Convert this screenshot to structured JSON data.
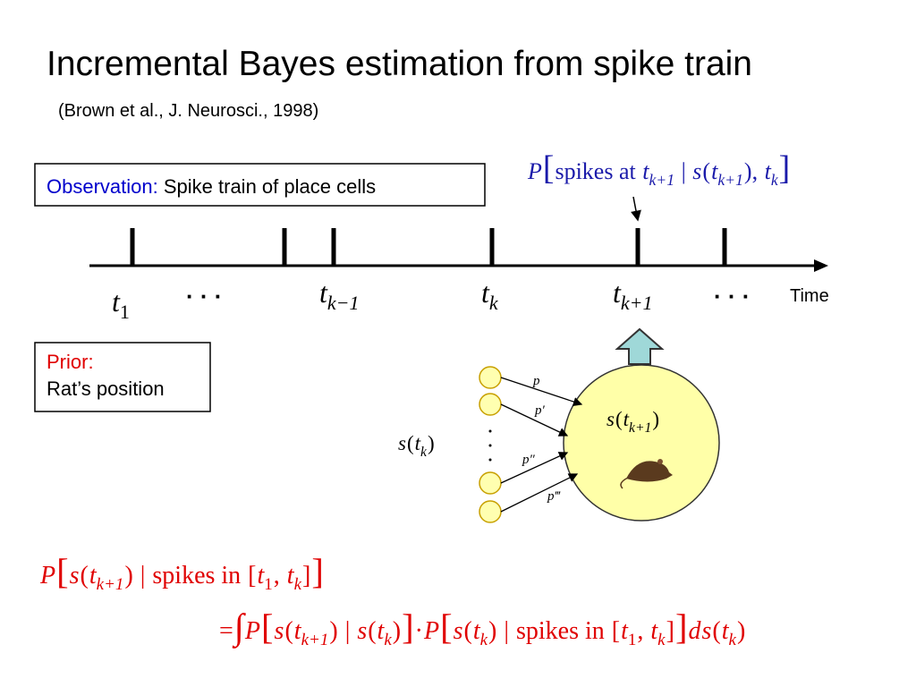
{
  "title": "Incremental Bayes estimation from spike train",
  "subtitle": "(Brown et al., J. Neurosci., 1998)",
  "observation": {
    "label": "Observation:",
    "text": "Spike train of place cells"
  },
  "likelihood": [
    "P",
    "[",
    "spikes at ",
    "t",
    "k+1",
    " | ",
    "s",
    "(",
    "t",
    "k+1",
    "), ",
    "t",
    "k",
    "]"
  ],
  "timeline": {
    "ticks": [
      [
        "t",
        "1"
      ],
      [
        "t",
        "k−1"
      ],
      [
        "t",
        "k"
      ],
      [
        "t",
        "k+1"
      ]
    ],
    "ellipsis": "·  ·  ·",
    "axis_label": "Time"
  },
  "prior": {
    "label": "Prior:",
    "text": "Rat’s position"
  },
  "network": {
    "input": [
      "s",
      "(",
      "t",
      "k",
      ")"
    ],
    "output": [
      "s",
      "(",
      "t",
      "k+1",
      ")"
    ],
    "weights": [
      "p",
      "p′",
      "p″",
      "p‴"
    ]
  },
  "posterior": [
    "P",
    "[",
    "s",
    "(",
    "t",
    "k+1",
    ")",
    " | ",
    "spikes in ",
    "[",
    "t",
    "1",
    ", ",
    "t",
    "k",
    "]",
    "]"
  ],
  "recursion": [
    "=",
    "∫",
    "P",
    "[",
    "s",
    "(",
    "t",
    "k+1",
    ")",
    " | ",
    "s",
    "(",
    "t",
    "k",
    ")",
    "]",
    "·",
    "P",
    "[",
    "s",
    "(",
    "t",
    "k",
    ")",
    " | ",
    "spikes in ",
    "[",
    "t",
    "1",
    ", ",
    "t",
    "k",
    "]",
    "]",
    "d",
    "s",
    "(",
    "t",
    "k",
    ")"
  ]
}
